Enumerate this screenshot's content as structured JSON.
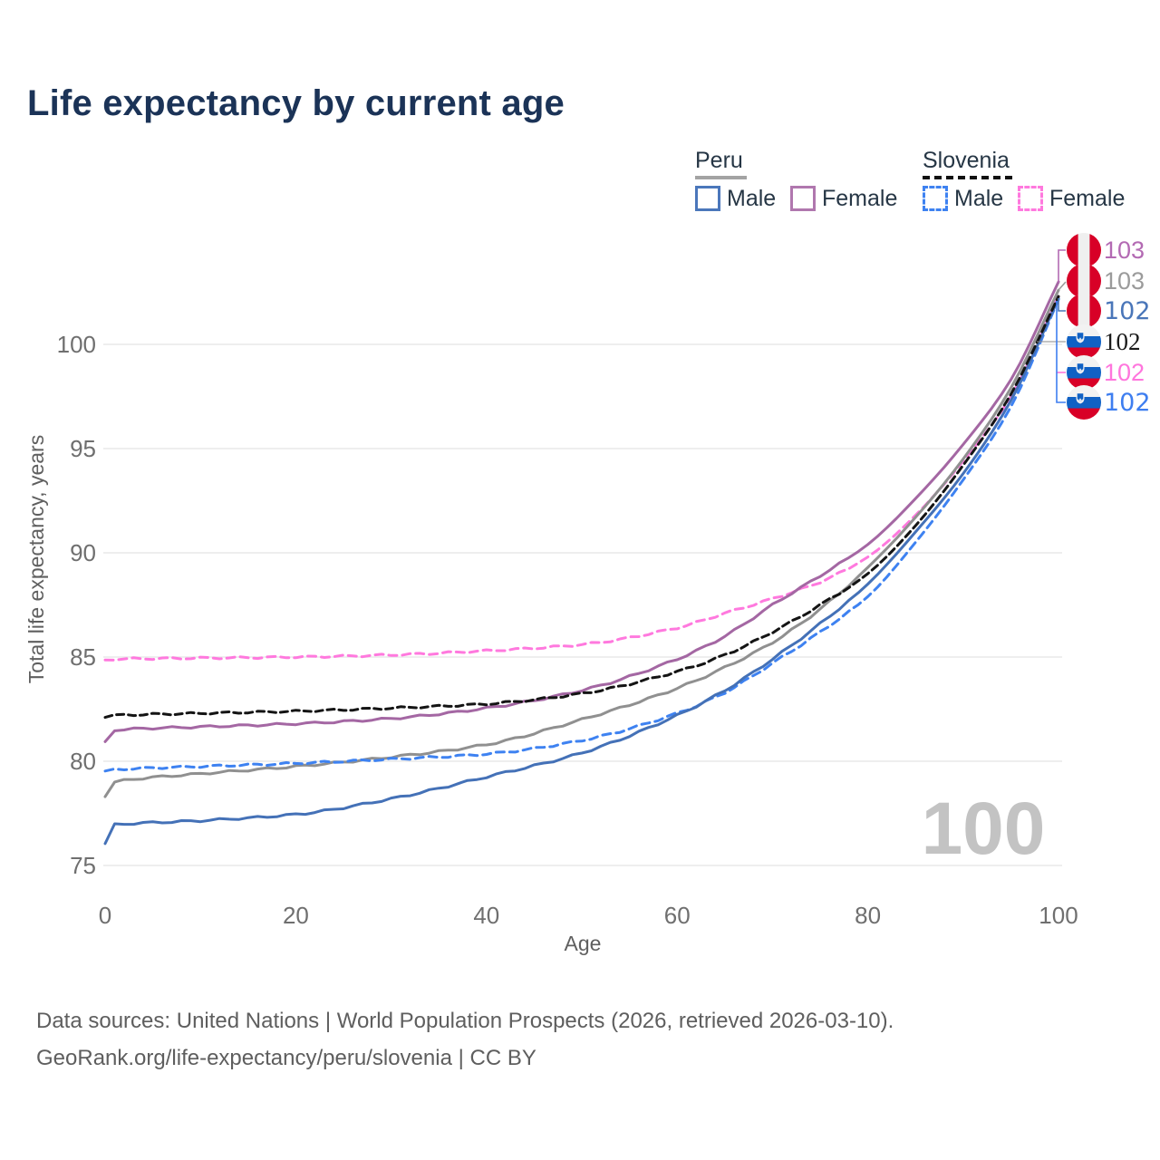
{
  "title": "Life expectancy by current age",
  "legend": {
    "groups": [
      {
        "label": "Peru",
        "underline_color": "#a3a3a3",
        "underline_style": "solid",
        "items": [
          {
            "label": "Male",
            "color": "#4b77bb",
            "style": "solid"
          },
          {
            "label": "Female",
            "color": "#b077ae",
            "style": "solid"
          }
        ]
      },
      {
        "label": "Slovenia",
        "underline_color": "#111111",
        "underline_style": "dashed",
        "items": [
          {
            "label": "Male",
            "color": "#3e82f1",
            "style": "dashed"
          },
          {
            "label": "Female",
            "color": "#ff79de",
            "style": "dashed"
          }
        ]
      }
    ]
  },
  "axes": {
    "x": {
      "label": "Age",
      "ticks": [
        "0",
        "20",
        "40",
        "60",
        "80",
        "100"
      ],
      "tick_values": [
        0,
        20,
        40,
        60,
        80,
        100
      ],
      "range": [
        0,
        100
      ]
    },
    "y": {
      "label": "Total life expectancy, years",
      "ticks": [
        "75",
        "80",
        "85",
        "90",
        "95",
        "100"
      ],
      "tick_values": [
        75,
        80,
        85,
        90,
        95,
        100
      ],
      "range": [
        75,
        103.5
      ],
      "grid": true
    }
  },
  "watermark": "100",
  "end_labels": [
    {
      "value": "103",
      "flag": "peru",
      "color": "#b36ab3",
      "series": "Peru Female"
    },
    {
      "value": "103",
      "flag": "peru",
      "color": "#9b9b9b",
      "series": "Peru Both sexes"
    },
    {
      "value": "102",
      "flag": "peru",
      "color": "#4a76b9",
      "series": "Peru Male"
    },
    {
      "value": "102",
      "flag": "slovenia",
      "color": "#1a1a1a",
      "series": "Slovenia Both sexes"
    },
    {
      "value": "102",
      "flag": "slovenia",
      "color": "#ff76dd",
      "series": "Slovenia Female"
    },
    {
      "value": "102",
      "flag": "slovenia",
      "color": "#3e7ef0",
      "series": "Slovenia Male"
    }
  ],
  "footer": {
    "line1": "Data sources: United Nations | World Population Prospects (2026, retrieved 2026-03-10).",
    "line2": "GeoRank.org/life-expectancy/peru/slovenia | CC BY"
  },
  "chart_data": {
    "type": "line",
    "title": "Life expectancy by current age",
    "xlabel": "Age",
    "ylabel": "Total life expectancy, years",
    "xlim": [
      0,
      100
    ],
    "ylim": [
      75,
      103.5
    ],
    "x_keypoints": [
      0,
      1,
      10,
      20,
      30,
      40,
      50,
      60,
      65,
      70,
      75,
      80,
      85,
      90,
      95,
      100
    ],
    "series": [
      {
        "name": "Peru Male",
        "color": "#4471b7",
        "dash": null,
        "values": [
          76.05,
          76.95,
          77.15,
          77.45,
          78.2,
          79.25,
          80.4,
          82.2,
          83.4,
          84.9,
          86.6,
          88.5,
          91.0,
          93.8,
          97.3,
          102.2
        ]
      },
      {
        "name": "Peru Female",
        "color": "#a467a3",
        "dash": null,
        "values": [
          80.9,
          81.5,
          81.65,
          81.8,
          82.05,
          82.55,
          83.4,
          84.9,
          86.0,
          87.5,
          88.9,
          90.4,
          92.6,
          95.2,
          98.3,
          103.0
        ]
      },
      {
        "name": "Peru Both sexes",
        "color": "#909090",
        "dash": null,
        "values": [
          78.35,
          79.0,
          79.4,
          79.75,
          80.2,
          80.8,
          82.0,
          83.5,
          84.5,
          85.7,
          87.3,
          89.3,
          91.7,
          94.5,
          97.9,
          102.6
        ]
      },
      {
        "name": "Slovenia Male",
        "color": "#3e82f1",
        "dash": "9 6",
        "values": [
          79.5,
          79.6,
          79.75,
          79.9,
          80.1,
          80.35,
          81.0,
          82.3,
          83.3,
          84.7,
          86.2,
          87.9,
          90.5,
          93.5,
          97.0,
          102.15
        ]
      },
      {
        "name": "Slovenia Female",
        "color": "#ff79de",
        "dash": "9 6",
        "values": [
          84.85,
          84.9,
          84.95,
          85.0,
          85.1,
          85.3,
          85.6,
          86.4,
          87.1,
          87.8,
          88.6,
          89.8,
          91.8,
          94.4,
          97.5,
          102.3
        ]
      },
      {
        "name": "Slovenia Both sexes",
        "color": "#141414",
        "dash": "8 5",
        "values": [
          82.15,
          82.2,
          82.3,
          82.4,
          82.55,
          82.75,
          83.25,
          84.3,
          85.1,
          86.2,
          87.5,
          89.0,
          91.3,
          94.2,
          97.6,
          102.3
        ]
      }
    ]
  }
}
